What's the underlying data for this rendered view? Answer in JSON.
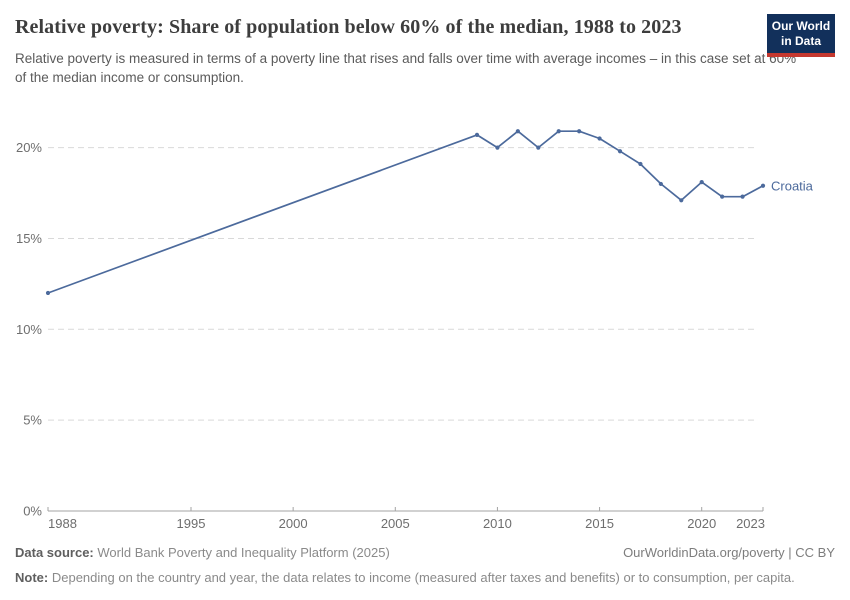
{
  "header": {
    "title": "Relative poverty: Share of population below 60% of the median, 1988 to 2023",
    "subtitle": "Relative poverty is measured in terms of a poverty line that rises and falls over time with average incomes – in this case set at 60% of the median income or consumption.",
    "logo": {
      "line1": "Our World",
      "line2": "in Data",
      "bg_color": "#12305b",
      "accent_color": "#c5382f"
    }
  },
  "chart_data": {
    "type": "line",
    "title": "Relative poverty: Share of population below 60% of the median, 1988 to 2023",
    "xlabel": "",
    "ylabel": "",
    "xlim": [
      1988,
      2023
    ],
    "ylim": [
      0,
      22
    ],
    "x_ticks": [
      1988,
      1995,
      2000,
      2005,
      2010,
      2015,
      2020,
      2023
    ],
    "y_ticks": [
      0,
      5,
      10,
      15,
      20
    ],
    "y_tick_suffix": "%",
    "grid": "horizontal-dashed",
    "legend_position": "end-of-line-label",
    "series": [
      {
        "name": "Croatia",
        "color": "#4c6a9c",
        "points": [
          [
            1988,
            12.0
          ],
          [
            2009,
            20.7
          ],
          [
            2010,
            20.0
          ],
          [
            2011,
            20.9
          ],
          [
            2012,
            20.0
          ],
          [
            2013,
            20.9
          ],
          [
            2014,
            20.9
          ],
          [
            2015,
            20.5
          ],
          [
            2016,
            19.8
          ],
          [
            2017,
            19.1
          ],
          [
            2018,
            18.0
          ],
          [
            2019,
            17.1
          ],
          [
            2020,
            18.1
          ],
          [
            2021,
            17.3
          ],
          [
            2022,
            17.3
          ],
          [
            2023,
            17.9
          ]
        ]
      }
    ],
    "colors": {
      "gridline": "#d9d9d9",
      "axis": "#a3a3a3",
      "tick_label": "#6e6e6e"
    }
  },
  "footer": {
    "data_source_label": "Data source:",
    "data_source": "World Bank Poverty and Inequality Platform (2025)",
    "attribution": "OurWorldinData.org/poverty | CC BY",
    "note_label": "Note:",
    "note": "Depending on the country and year, the data relates to income (measured after taxes and benefits) or to consumption, per capita."
  }
}
